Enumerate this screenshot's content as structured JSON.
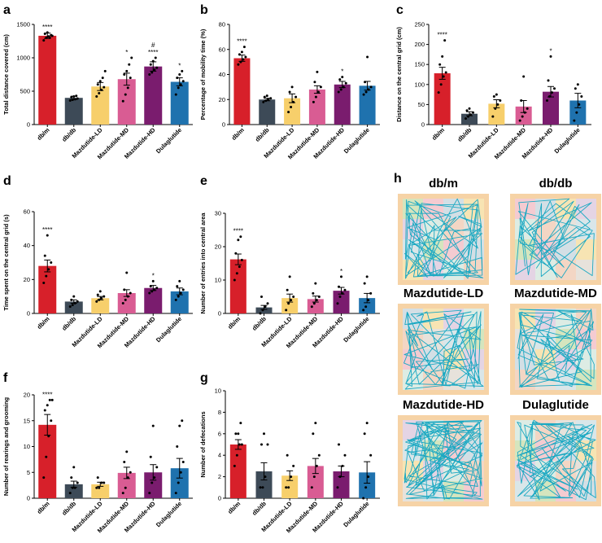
{
  "panel_labels": [
    "a",
    "b",
    "c",
    "d",
    "e",
    "f",
    "g",
    "h"
  ],
  "colors": [
    "#d7202a",
    "#3d4a57",
    "#f7cf6b",
    "#d95c93",
    "#7a1c6e",
    "#1f72ae"
  ],
  "chart_data": [
    {
      "id": "a",
      "type": "bar",
      "categories": [
        "db/m",
        "db/db",
        "Mazdutide-LD",
        "Mazdutide-MD",
        "Mazdutide-HD",
        "Dulaglutide"
      ],
      "values": [
        1330,
        400,
        570,
        680,
        870,
        640
      ],
      "errors": [
        40,
        25,
        60,
        90,
        70,
        60
      ],
      "points": [
        [
          1260,
          1300,
          1320,
          1340,
          1360,
          1380,
          1300,
          1330
        ],
        [
          360,
          370,
          380,
          390,
          410,
          420,
          430
        ],
        [
          420,
          470,
          520,
          560,
          600,
          650,
          700,
          800
        ],
        [
          350,
          450,
          550,
          700,
          750,
          800,
          900,
          1000
        ],
        [
          750,
          780,
          820,
          850,
          900,
          950,
          1000
        ],
        [
          450,
          550,
          600,
          650,
          700,
          750,
          800
        ]
      ],
      "ylabel": "Total distance covered (cm)",
      "ylim": [
        0,
        1500
      ],
      "yticks": [
        0,
        500,
        1000,
        1500
      ],
      "significance": [
        "****",
        "",
        "",
        "*",
        "#\n****",
        "*"
      ]
    },
    {
      "id": "b",
      "type": "bar",
      "categories": [
        "db/m",
        "db/db",
        "Mazdutide-LD",
        "Mazdutide-MD",
        "Mazdutide-HD",
        "Dulaglutide"
      ],
      "values": [
        53,
        20,
        21,
        28,
        32,
        31
      ],
      "errors": [
        2.5,
        1.0,
        3.5,
        3.0,
        2.5,
        3.5
      ],
      "points": [
        [
          48,
          50,
          52,
          54,
          56,
          58,
          62
        ],
        [
          18,
          19,
          20,
          21,
          22,
          23
        ],
        [
          10,
          14,
          18,
          22,
          26,
          30
        ],
        [
          18,
          22,
          26,
          30,
          34,
          42
        ],
        [
          26,
          28,
          30,
          33,
          36,
          38
        ],
        [
          24,
          26,
          28,
          30,
          34,
          54
        ]
      ],
      "ylabel": "Percentage of mobility time (%)",
      "ylim": [
        0,
        80
      ],
      "yticks": [
        0,
        20,
        40,
        60,
        80
      ],
      "significance": [
        "****",
        "",
        "",
        "",
        "*",
        ""
      ]
    },
    {
      "id": "c",
      "type": "bar",
      "categories": [
        "db/m",
        "db/db",
        "Mazdutide-LD",
        "Mazdutide-MD",
        "Mazdutide-HD",
        "Dulaglutide"
      ],
      "values": [
        128,
        27,
        52,
        45,
        82,
        60
      ],
      "errors": [
        15,
        5,
        10,
        15,
        13,
        18
      ],
      "points": [
        [
          80,
          100,
          120,
          130,
          150,
          170,
          210
        ],
        [
          15,
          20,
          25,
          30,
          35,
          40
        ],
        [
          20,
          40,
          50,
          60,
          70,
          75
        ],
        [
          10,
          20,
          30,
          40,
          60,
          120
        ],
        [
          60,
          70,
          80,
          90,
          110,
          170
        ],
        [
          10,
          30,
          50,
          70,
          90,
          100
        ]
      ],
      "ylabel": "Distance on the central grid (cm)",
      "ylim": [
        0,
        250
      ],
      "yticks": [
        0,
        50,
        100,
        150,
        200,
        250
      ],
      "significance": [
        "****",
        "",
        "",
        "",
        "*",
        ""
      ]
    },
    {
      "id": "d",
      "type": "bar",
      "categories": [
        "db/m",
        "db/db",
        "Mazdutide-LD",
        "Mazdutide-MD",
        "Mazdutide-HD",
        "Dulaglutide"
      ],
      "values": [
        28,
        7,
        9,
        12,
        15,
        13
      ],
      "errors": [
        3.5,
        1,
        1,
        2,
        1.5,
        2
      ],
      "points": [
        [
          18,
          22,
          26,
          30,
          34,
          46
        ],
        [
          4,
          5,
          6,
          7,
          8,
          10
        ],
        [
          7,
          8,
          9,
          10,
          11,
          13
        ],
        [
          6,
          8,
          10,
          12,
          14,
          24
        ],
        [
          12,
          13,
          14,
          15,
          16,
          19
        ],
        [
          8,
          10,
          12,
          14,
          16,
          19
        ]
      ],
      "ylabel": "Time spent on the central grid (s)",
      "ylim": [
        0,
        60
      ],
      "yticks": [
        0,
        20,
        40,
        60
      ],
      "significance": [
        "****",
        "",
        "",
        "",
        "*",
        ""
      ]
    },
    {
      "id": "e",
      "type": "bar",
      "categories": [
        "db/m",
        "db/db",
        "Mazdutide-LD",
        "Mazdutide-MD",
        "Mazdutide-HD",
        "Dulaglutide"
      ],
      "values": [
        16.2,
        1.8,
        4.6,
        4.3,
        6.8,
        4.6
      ],
      "errors": [
        1.6,
        0.6,
        1.2,
        0.9,
        1.0,
        1.4
      ],
      "points": [
        [
          10,
          12,
          14,
          16,
          18,
          22,
          23
        ],
        [
          0,
          1,
          2,
          3,
          5
        ],
        [
          1,
          3,
          4,
          5,
          7,
          11
        ],
        [
          2,
          3,
          4,
          5,
          6,
          9
        ],
        [
          3,
          5,
          6,
          7,
          8,
          11
        ],
        [
          1,
          2,
          4,
          6,
          9,
          11
        ]
      ],
      "ylabel": "Number of entries into central area",
      "ylim": [
        0,
        30
      ],
      "yticks": [
        0,
        10,
        20,
        30
      ],
      "significance": [
        "****",
        "",
        "",
        "",
        "*",
        ""
      ]
    },
    {
      "id": "f",
      "type": "bar",
      "categories": [
        "db/m",
        "db/db",
        "Mazdutide-LD",
        "Mazdutide-MD",
        "Mazdutide-HD",
        "Dulaglutide"
      ],
      "values": [
        14.2,
        2.7,
        2.7,
        4.9,
        5.0,
        5.8
      ],
      "errors": [
        2.0,
        0.6,
        0.4,
        1.1,
        1.5,
        1.9
      ],
      "points": [
        [
          4,
          8,
          12,
          15,
          17,
          18,
          19,
          19
        ],
        [
          1,
          2,
          2,
          3,
          4,
          6
        ],
        [
          2,
          2,
          3,
          3,
          4
        ],
        [
          1,
          2,
          4,
          5,
          7,
          9
        ],
        [
          1,
          3,
          4,
          6,
          8,
          14
        ],
        [
          1,
          3,
          5,
          7,
          10,
          14,
          15
        ]
      ],
      "ylabel": "Number of rearings and grooming",
      "ylim": [
        0,
        20
      ],
      "yticks": [
        0,
        5,
        10,
        15,
        20
      ],
      "significance": [
        "****",
        "",
        "",
        "",
        "",
        ""
      ]
    },
    {
      "id": "g",
      "type": "bar",
      "categories": [
        "db/m",
        "db/db",
        "Mazdutide-LD",
        "Mazdutide-MD",
        "Mazdutide-HD",
        "Dulaglutide"
      ],
      "values": [
        5.0,
        2.5,
        2.1,
        3.0,
        2.5,
        2.4
      ],
      "errors": [
        0.45,
        0.8,
        0.45,
        0.7,
        0.5,
        1.0
      ],
      "points": [
        [
          3,
          4,
          5,
          5,
          6,
          6,
          7
        ],
        [
          1,
          1,
          2,
          5,
          5,
          6
        ],
        [
          1,
          1,
          2,
          3,
          4
        ],
        [
          1,
          2,
          3,
          4,
          6,
          7
        ],
        [
          1,
          2,
          3,
          4,
          5
        ],
        [
          0,
          1,
          2,
          4,
          6,
          7
        ]
      ],
      "ylabel": "Number of defecations",
      "ylim": [
        0,
        10
      ],
      "yticks": [
        0,
        2,
        4,
        6,
        8,
        10
      ],
      "significance": [
        "",
        "",
        "",
        "",
        "",
        ""
      ]
    }
  ],
  "track_maps": {
    "titles": [
      "db/m",
      "db/db",
      "Mazdutide-LD",
      "Mazdutide-MD",
      "Mazdutide-HD",
      "Dulaglutide"
    ]
  }
}
